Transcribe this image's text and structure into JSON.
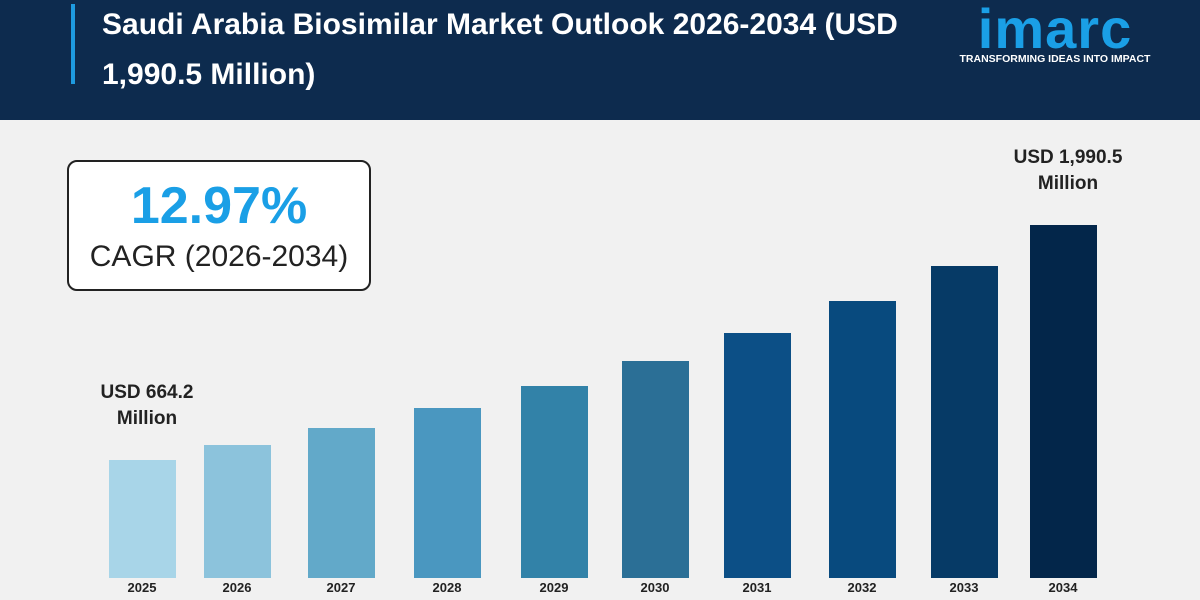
{
  "chart_data": {
    "type": "bar",
    "title": "Saudi Arabia Biosimilar Market Outlook 2026-2034 (USD 1,990.5 Million)",
    "brand": "imarc",
    "tagline": "TRANSFORMING IDEAS INTO IMPACT",
    "cagr": "12.97%",
    "cagr_label": "CAGR (2026-2034)",
    "categories": [
      "2025",
      "2026",
      "2027",
      "2028",
      "2029",
      "2030",
      "2031",
      "2032",
      "2033",
      "2034"
    ],
    "values": [
      664.2,
      750.4,
      847.7,
      957.6,
      1081.8,
      1222.1,
      1380.6,
      1559.7,
      1762.0,
      1990.5
    ],
    "value_labels": [
      "USD 664.2 Million",
      null,
      null,
      null,
      null,
      null,
      null,
      null,
      null,
      "USD 1,990.5 Million"
    ],
    "colors": [
      "#a8d5e8",
      "#8cc3dc",
      "#62a9c9",
      "#4a97c0",
      "#3282a8",
      "#2b6f96",
      "#0c4f86",
      "#084a7e",
      "#063a66",
      "#03264a"
    ]
  }
}
